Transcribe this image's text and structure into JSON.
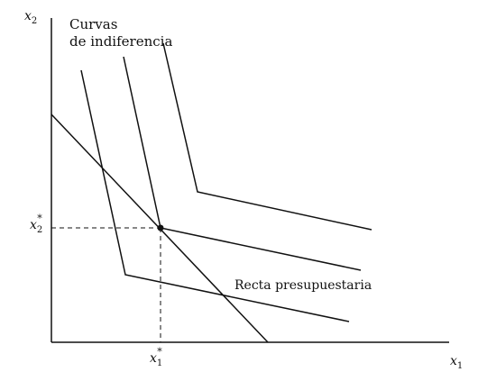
{
  "figure": {
    "axes": {
      "y_label": "x",
      "y_sub": "2",
      "x_label": "x",
      "x_sub": "1"
    },
    "annotations": {
      "curves_label_line1": "Curvas",
      "curves_label_line2": "de indiferencia",
      "budget_label": "Recta presupuestaria"
    },
    "optimum": {
      "x_label": "x",
      "x_sub": "1",
      "x_sup": "*",
      "y_label": "x",
      "y_sub": "2",
      "y_sup": "*"
    }
  }
}
